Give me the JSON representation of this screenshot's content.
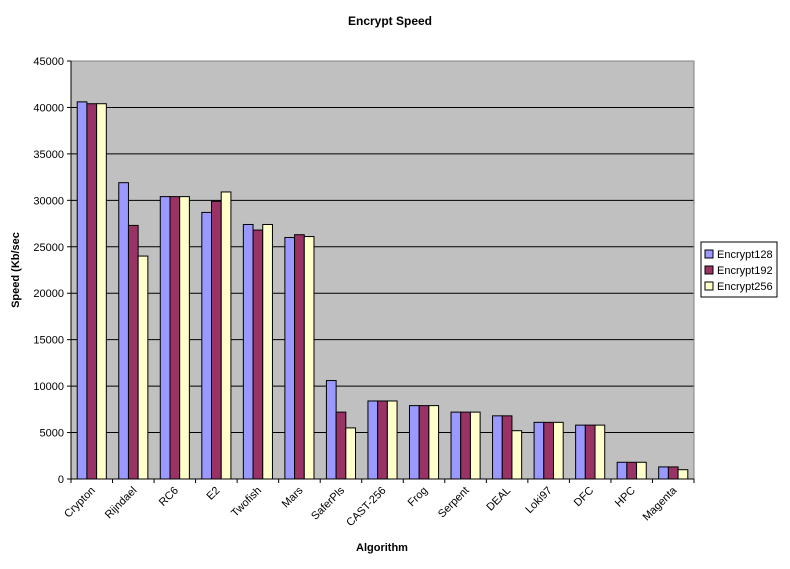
{
  "chart_data": {
    "type": "bar",
    "title": "Encrypt Speed",
    "xlabel": "Algorithm",
    "ylabel": "Speed (Kb/sec",
    "ylim": [
      0,
      45000
    ],
    "yticks": [
      0,
      5000,
      10000,
      15000,
      20000,
      25000,
      30000,
      35000,
      40000,
      45000
    ],
    "grid": true,
    "legend_position": "right",
    "categories": [
      "Crypton",
      "Rijndael",
      "RC6",
      "E2",
      "Twofish",
      "Mars",
      "SaferPls",
      "CAST-256",
      "Frog",
      "Serpent",
      "DEAL",
      "Loki97",
      "DFC",
      "HPC",
      "Magenta"
    ],
    "series": [
      {
        "name": "Encrypt128",
        "color": "#9999ff",
        "values": [
          40600,
          31900,
          30400,
          28700,
          27400,
          26000,
          10600,
          8400,
          7900,
          7200,
          6800,
          6100,
          5800,
          1800,
          1300
        ]
      },
      {
        "name": "Encrypt192",
        "color": "#993366",
        "values": [
          40400,
          27300,
          30400,
          29900,
          26800,
          26300,
          7200,
          8400,
          7900,
          7200,
          6800,
          6100,
          5800,
          1800,
          1300
        ]
      },
      {
        "name": "Encrypt256",
        "color": "#ffffcc",
        "values": [
          40400,
          24000,
          30400,
          30900,
          27400,
          26100,
          5500,
          8400,
          7900,
          7200,
          5200,
          6100,
          5800,
          1800,
          1000
        ]
      }
    ],
    "plot_background": "#c0c0c0"
  }
}
